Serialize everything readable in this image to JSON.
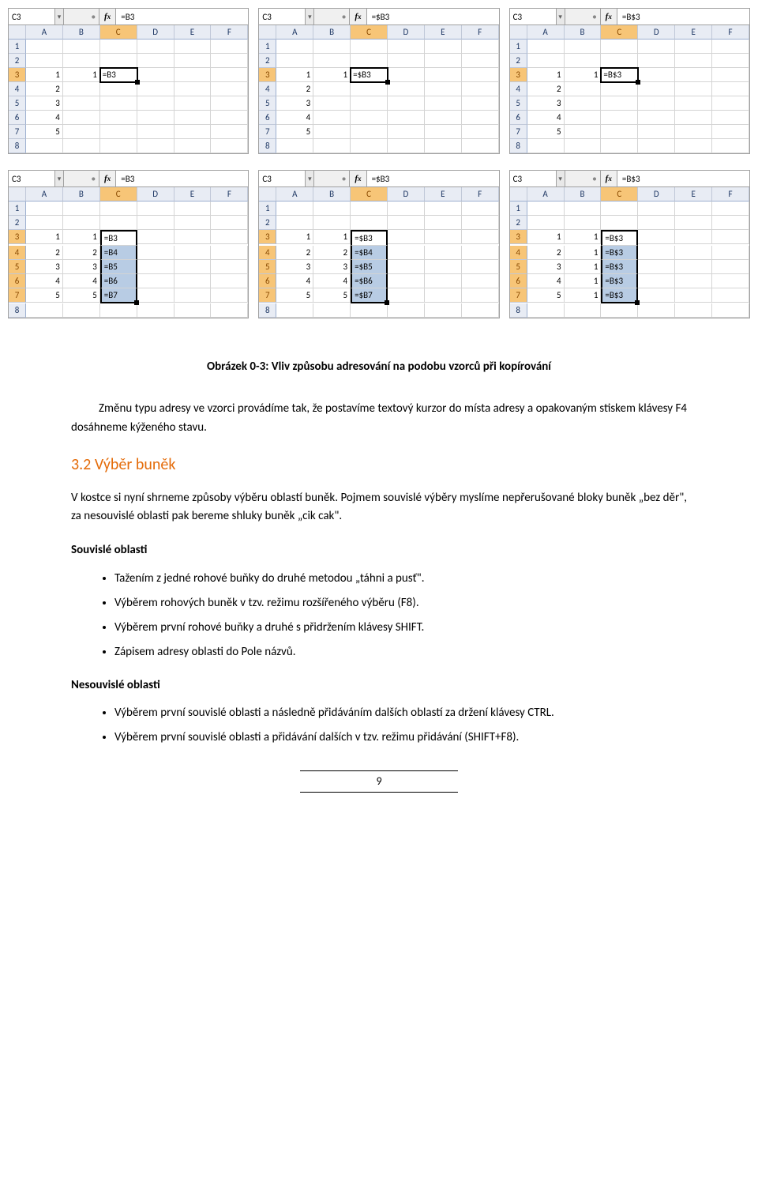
{
  "sheets_top": [
    {
      "cellref": "C3",
      "formula": "=B3",
      "single": true,
      "colA": [
        "1",
        "2",
        "3",
        "4",
        "5"
      ],
      "colB": [
        "1",
        "",
        "",
        "",
        ""
      ],
      "colCtxt": [
        "=B3",
        "",
        "",
        "",
        ""
      ]
    },
    {
      "cellref": "C3",
      "formula": "=$B3",
      "single": true,
      "colA": [
        "1",
        "2",
        "3",
        "4",
        "5"
      ],
      "colB": [
        "1",
        "",
        "",
        "",
        ""
      ],
      "colCtxt": [
        "=$B3",
        "",
        "",
        "",
        ""
      ]
    },
    {
      "cellref": "C3",
      "formula": "=B$3",
      "single": true,
      "colA": [
        "1",
        "2",
        "3",
        "4",
        "5"
      ],
      "colB": [
        "1",
        "",
        "",
        "",
        ""
      ],
      "colCtxt": [
        "=B$3",
        "",
        "",
        "",
        ""
      ]
    }
  ],
  "sheets_bottom": [
    {
      "cellref": "C3",
      "formula": "=B3",
      "colA": [
        "1",
        "2",
        "3",
        "4",
        "5"
      ],
      "colB": [
        "1",
        "2",
        "3",
        "4",
        "5"
      ],
      "colCtxt": [
        "=B3",
        "=B4",
        "=B5",
        "=B6",
        "=B7"
      ]
    },
    {
      "cellref": "C3",
      "formula": "=$B3",
      "colA": [
        "1",
        "2",
        "3",
        "4",
        "5"
      ],
      "colB": [
        "1",
        "2",
        "3",
        "4",
        "5"
      ],
      "colCtxt": [
        "=$B3",
        "=$B4",
        "=$B5",
        "=$B6",
        "=$B7"
      ]
    },
    {
      "cellref": "C3",
      "formula": "=B$3",
      "colA": [
        "1",
        "2",
        "3",
        "4",
        "5"
      ],
      "colB": [
        "1",
        "1",
        "1",
        "1",
        "1"
      ],
      "colCtxt": [
        "=B$3",
        "=B$3",
        "=B$3",
        "=B$3",
        "=B$3"
      ]
    }
  ],
  "col_labels": [
    "A",
    "B",
    "C",
    "D",
    "E",
    "F"
  ],
  "row_labels": [
    "1",
    "2",
    "3",
    "4",
    "5",
    "6",
    "7",
    "8"
  ],
  "text": {
    "caption": "Obrázek 0-3: Vliv způsobu adresování na podobu vzorců při kopírování",
    "p1": "Změnu typu adresy ve vzorci provádíme tak, že postavíme textový kurzor do místa adresy a opakovaným stiskem klávesy F4 dosáhneme kýženého stavu.",
    "h2": "3.2  Výběr buněk",
    "p2": "V kostce si nyní shrneme způsoby výběru oblastí buněk. Pojmem souvislé výběry myslíme nepřerušované bloky buněk „bez děr\", za nesouvislé oblasti pak bereme shluky buněk „cik cak\".",
    "h3a": "Souvislé oblasti",
    "b1": "Tažením z jedné rohové buňky do druhé metodou „táhni a pusť\".",
    "b2": "Výběrem rohových buněk v tzv. režimu rozšířeného výběru (F8).",
    "b3": "Výběrem první rohové buňky a druhé s přidržením klávesy SHIFT.",
    "b4": "Zápisem adresy oblasti do Pole názvů.",
    "h3b": "Nesouvislé oblasti",
    "b5": "Výběrem první souvislé oblasti a následně přidáváním dalších oblastí za držení klávesy CTRL.",
    "b6": "Výběrem první souvislé oblasti a přidávání dalších v tzv. režimu přidávání (SHIFT+F8).",
    "pagenum": "9"
  }
}
